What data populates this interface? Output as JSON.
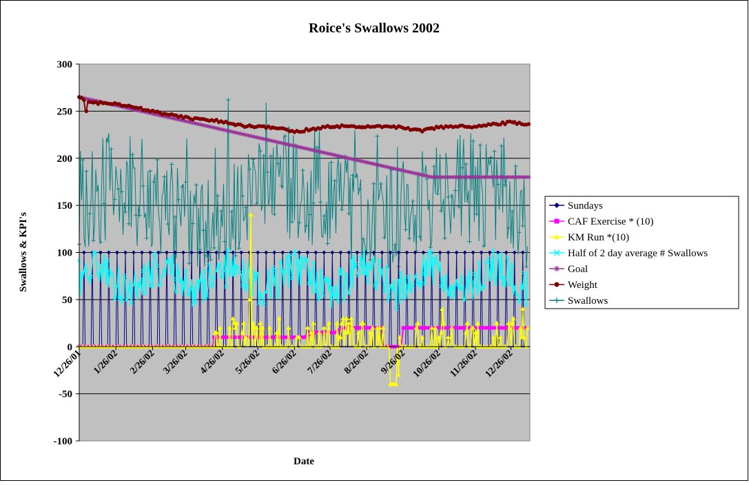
{
  "chart_data": {
    "type": "line",
    "title": "Roice's Swallows 2002",
    "xlabel": "Date",
    "ylabel": "Swallows & KPI's",
    "ylim": [
      -100,
      300
    ],
    "yticks": [
      -100,
      -50,
      0,
      50,
      100,
      150,
      200,
      250,
      300
    ],
    "xlim": [
      "2001-12-26",
      "2003-01-11"
    ],
    "xticks": [
      {
        "label": "12/26/01",
        "date": "2001-12-26"
      },
      {
        "label": "1/26/02",
        "date": "2002-01-26"
      },
      {
        "label": "2/26/02",
        "date": "2002-02-26"
      },
      {
        "label": "3/26/02",
        "date": "2002-03-26"
      },
      {
        "label": "4/26/02",
        "date": "2002-04-26"
      },
      {
        "label": "5/26/02",
        "date": "2002-05-26"
      },
      {
        "label": "6/26/02",
        "date": "2002-06-26"
      },
      {
        "label": "7/26/02",
        "date": "2002-07-26"
      },
      {
        "label": "8/26/02",
        "date": "2002-08-26"
      },
      {
        "label": "9/26/02",
        "date": "2002-09-26"
      },
      {
        "label": "10/26/02",
        "date": "2002-10-26"
      },
      {
        "label": "11/26/02",
        "date": "2002-11-26"
      },
      {
        "label": "12/26/02",
        "date": "2002-12-26"
      }
    ],
    "grid": "horizontal",
    "plot_background": "#c0c0c0",
    "legend_position": "right",
    "series": [
      {
        "name": "Sundays",
        "color": "#000080",
        "marker": "diamond",
        "note_pattern": "weekly spike to 100 on each Sunday, 0 otherwise",
        "sample": [
          {
            "x": "2001-12-30",
            "y": 100
          },
          {
            "x": "2002-01-06",
            "y": 100
          },
          {
            "x": "2002-06-30",
            "y": 100
          },
          {
            "x": "2002-12-29",
            "y": 100
          }
        ]
      },
      {
        "name": "CAF Exercise * (10)",
        "color": "#ff00ff",
        "marker": "square",
        "points": [
          {
            "x": "2001-12-26",
            "y": 0
          },
          {
            "x": "2002-04-18",
            "y": 0
          },
          {
            "x": "2002-04-19",
            "y": 10
          },
          {
            "x": "2002-06-12",
            "y": 10
          },
          {
            "x": "2002-06-13",
            "y": 10
          },
          {
            "x": "2002-07-05",
            "y": 10
          },
          {
            "x": "2002-07-10",
            "y": 15
          },
          {
            "x": "2002-07-31",
            "y": 15
          },
          {
            "x": "2002-08-05",
            "y": 20
          },
          {
            "x": "2002-09-08",
            "y": 20
          },
          {
            "x": "2002-09-10",
            "y": 0
          },
          {
            "x": "2002-09-24",
            "y": 0
          },
          {
            "x": "2002-09-26",
            "y": 20
          },
          {
            "x": "2003-01-08",
            "y": 20
          }
        ]
      },
      {
        "name": "KM Run *(10)",
        "color": "#ffff00",
        "marker": "triangle",
        "sample": [
          {
            "x": "2002-05-20",
            "y": 140
          },
          {
            "x": "2002-05-19",
            "y": 50
          },
          {
            "x": "2002-09-18",
            "y": -40
          },
          {
            "x": "2002-09-22",
            "y": -30
          },
          {
            "x": "2002-05-05",
            "y": 30
          },
          {
            "x": "2002-10-29",
            "y": 40
          },
          {
            "x": "2003-01-05",
            "y": 40
          }
        ]
      },
      {
        "name": "Half of 2 day average # Swallows",
        "color": "#00ffff",
        "marker": "x",
        "range_typical": [
          40,
          110
        ]
      },
      {
        "name": "Goal",
        "color": "#993399",
        "marker": "asterisk",
        "points": [
          {
            "x": "2001-12-26",
            "y": 265
          },
          {
            "x": "2002-10-20",
            "y": 180
          },
          {
            "x": "2003-01-11",
            "y": 180
          }
        ]
      },
      {
        "name": "Weight",
        "color": "#800000",
        "marker": "circle",
        "points": [
          {
            "x": "2001-12-26",
            "y": 265
          },
          {
            "x": "2002-01-01",
            "y": 259
          },
          {
            "x": "2002-01-26",
            "y": 258
          },
          {
            "x": "2002-02-26",
            "y": 250
          },
          {
            "x": "2002-03-26",
            "y": 243
          },
          {
            "x": "2002-04-26",
            "y": 239
          },
          {
            "x": "2002-05-15",
            "y": 234
          },
          {
            "x": "2002-06-10",
            "y": 233
          },
          {
            "x": "2002-06-26",
            "y": 228
          },
          {
            "x": "2002-07-26",
            "y": 234
          },
          {
            "x": "2002-08-26",
            "y": 234
          },
          {
            "x": "2002-09-26",
            "y": 233
          },
          {
            "x": "2002-10-10",
            "y": 229
          },
          {
            "x": "2002-10-26",
            "y": 233
          },
          {
            "x": "2002-11-26",
            "y": 234
          },
          {
            "x": "2002-12-26",
            "y": 238
          },
          {
            "x": "2003-01-11",
            "y": 235
          }
        ]
      },
      {
        "name": "Swallows",
        "color": "#008080",
        "marker": "plus",
        "range_typical": [
          90,
          230
        ],
        "sample_peaks": [
          {
            "x": "2002-05-01",
            "y": 262
          },
          {
            "x": "2002-06-02",
            "y": 259
          },
          {
            "x": "2002-12-20",
            "y": 222
          }
        ]
      }
    ]
  }
}
